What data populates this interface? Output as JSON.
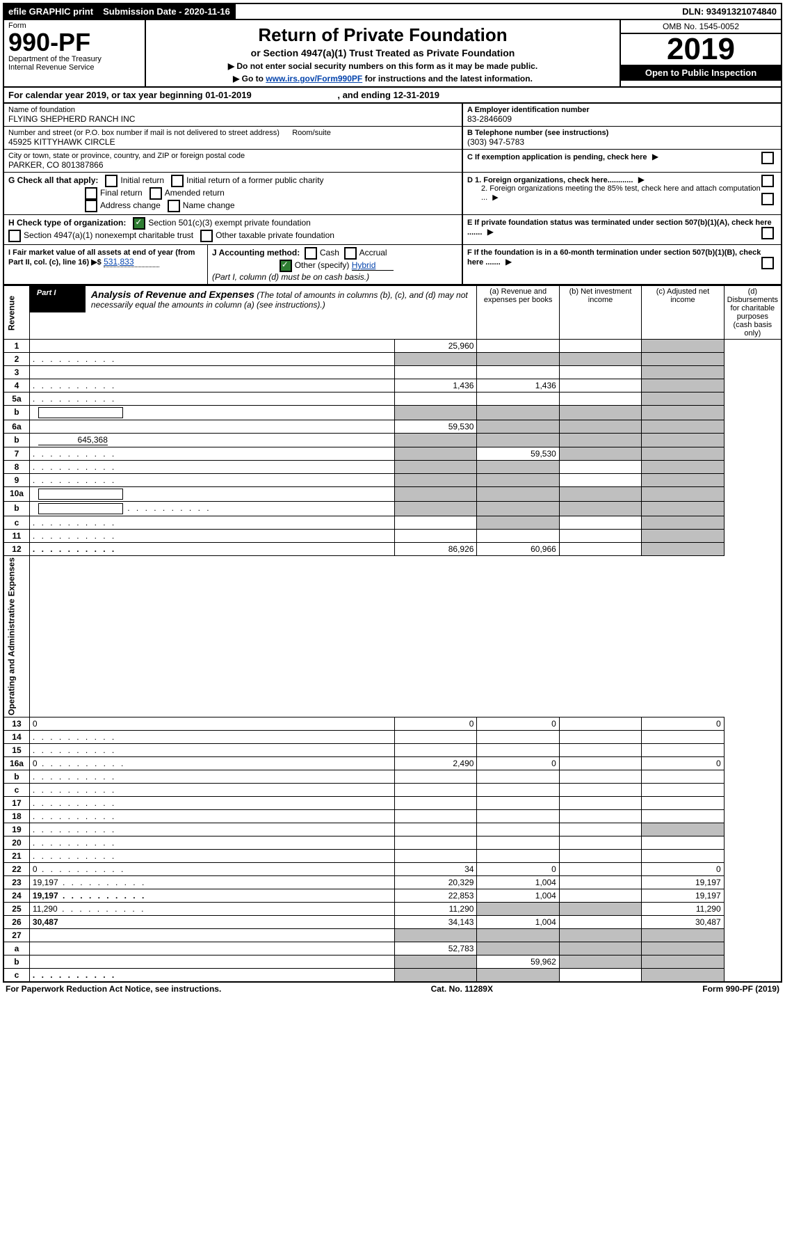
{
  "topbar": {
    "efile": "efile GRAPHIC print",
    "submission": "Submission Date - 2020-11-16",
    "dln": "DLN: 93491321074840"
  },
  "header": {
    "form_word": "Form",
    "form_no": "990-PF",
    "dept": "Department of the Treasury",
    "irs": "Internal Revenue Service",
    "title": "Return of Private Foundation",
    "sub": "or Section 4947(a)(1) Trust Treated as Private Foundation",
    "instr1": "▶ Do not enter social security numbers on this form as it may be made public.",
    "instr2_pre": "▶ Go to ",
    "instr2_link": "www.irs.gov/Form990PF",
    "instr2_post": " for instructions and the latest information.",
    "omb": "OMB No. 1545-0052",
    "year": "2019",
    "open": "Open to Public Inspection"
  },
  "cal": {
    "text_pre": "For calendar year 2019, or tax year beginning ",
    "begin": "01-01-2019",
    "mid": " , and ending ",
    "end": "12-31-2019"
  },
  "entity": {
    "name_lbl": "Name of foundation",
    "name": "FLYING SHEPHERD RANCH INC",
    "addr_lbl": "Number and street (or P.O. box number if mail is not delivered to street address)",
    "addr": "45925 KITTYHAWK CIRCLE",
    "room_lbl": "Room/suite",
    "city_lbl": "City or town, state or province, country, and ZIP or foreign postal code",
    "city": "PARKER, CO  801387866",
    "ein_lbl": "A Employer identification number",
    "ein": "83-2846609",
    "tel_lbl": "B Telephone number (see instructions)",
    "tel": "(303) 947-5783",
    "c_lbl": "C If exemption application is pending, check here",
    "d1": "D 1. Foreign organizations, check here............",
    "d2": "2. Foreign organizations meeting the 85% test, check here and attach computation ...",
    "e": "E If private foundation status was terminated under section 507(b)(1)(A), check here .......",
    "f": "F If the foundation is in a 60-month termination under section 507(b)(1)(B), check here ......."
  },
  "g": {
    "label": "G Check all that apply:",
    "opts": [
      "Initial return",
      "Initial return of a former public charity",
      "Final return",
      "Amended return",
      "Address change",
      "Name change"
    ]
  },
  "h": {
    "label": "H Check type of organization:",
    "opt1": "Section 501(c)(3) exempt private foundation",
    "opt2": "Section 4947(a)(1) nonexempt charitable trust",
    "opt3": "Other taxable private foundation"
  },
  "i": {
    "label": "I Fair market value of all assets at end of year (from Part II, col. (c), line 16) ▶$",
    "val": "531,833"
  },
  "j": {
    "label": "J Accounting method:",
    "cash": "Cash",
    "accrual": "Accrual",
    "other": "Other (specify)",
    "other_val": "Hybrid",
    "note": "(Part I, column (d) must be on cash basis.)"
  },
  "part1": {
    "label": "Part I",
    "title": "Analysis of Revenue and Expenses",
    "note": "(The total of amounts in columns (b), (c), and (d) may not necessarily equal the amounts in column (a) (see instructions).)",
    "cols": {
      "a": "(a) Revenue and expenses per books",
      "b": "(b) Net investment income",
      "c": "(c) Adjusted net income",
      "d": "(d) Disbursements for charitable purposes (cash basis only)"
    }
  },
  "sections": {
    "rev": "Revenue",
    "exp": "Operating and Administrative Expenses"
  },
  "lines": [
    {
      "n": "1",
      "d": "",
      "a": "25,960",
      "b": "",
      "c": "",
      "d_shade": true
    },
    {
      "n": "2",
      "d": "",
      "dots": true,
      "a": "",
      "b": "",
      "c": "",
      "all_shade": true
    },
    {
      "n": "3",
      "d": "",
      "a": "",
      "b": "",
      "c": "",
      "d_shade": true
    },
    {
      "n": "4",
      "d": "",
      "dots": true,
      "a": "1,436",
      "b": "1,436",
      "c": "",
      "d_shade": true
    },
    {
      "n": "5a",
      "d": "",
      "dots": true,
      "a": "",
      "b": "",
      "c": "",
      "d_shade": true
    },
    {
      "n": "b",
      "d": "",
      "box": true,
      "a": "",
      "b": "",
      "c": "",
      "all_shade": true
    },
    {
      "n": "6a",
      "d": "",
      "a": "59,530",
      "b": "",
      "c": "",
      "bcd_shade": true
    },
    {
      "n": "b",
      "d": "",
      "box_val": "645,368",
      "a": "",
      "b": "",
      "c": "",
      "all_shade": true
    },
    {
      "n": "7",
      "d": "",
      "dots": true,
      "a": "",
      "b": "59,530",
      "c": "",
      "a_shade": true,
      "cd_shade": true
    },
    {
      "n": "8",
      "d": "",
      "dots": true,
      "a": "",
      "b": "",
      "c": "",
      "ab_shade": true,
      "d_shade": true
    },
    {
      "n": "9",
      "d": "",
      "dots": true,
      "a": "",
      "b": "",
      "c": "",
      "ab_shade": true,
      "d_shade": true
    },
    {
      "n": "10a",
      "d": "",
      "box": true,
      "a": "",
      "b": "",
      "c": "",
      "all_shade": true
    },
    {
      "n": "b",
      "d": "",
      "dots": true,
      "box": true,
      "a": "",
      "b": "",
      "c": "",
      "all_shade": true
    },
    {
      "n": "c",
      "d": "",
      "dots": true,
      "a": "",
      "b": "",
      "c": "",
      "b_shade": true,
      "d_shade": true
    },
    {
      "n": "11",
      "d": "",
      "dots": true,
      "a": "",
      "b": "",
      "c": "",
      "d_shade": true
    },
    {
      "n": "12",
      "d": "",
      "dots": true,
      "bold": true,
      "a": "86,926",
      "b": "60,966",
      "c": "",
      "d_shade": true
    },
    {
      "n": "13",
      "d": "0",
      "a": "0",
      "b": "0",
      "c": ""
    },
    {
      "n": "14",
      "d": "",
      "dots": true,
      "a": "",
      "b": "",
      "c": ""
    },
    {
      "n": "15",
      "d": "",
      "dots": true,
      "a": "",
      "b": "",
      "c": ""
    },
    {
      "n": "16a",
      "d": "0",
      "dots": true,
      "a": "2,490",
      "b": "0",
      "c": ""
    },
    {
      "n": "b",
      "d": "",
      "dots": true,
      "a": "",
      "b": "",
      "c": ""
    },
    {
      "n": "c",
      "d": "",
      "dots": true,
      "a": "",
      "b": "",
      "c": ""
    },
    {
      "n": "17",
      "d": "",
      "dots": true,
      "a": "",
      "b": "",
      "c": ""
    },
    {
      "n": "18",
      "d": "",
      "dots": true,
      "a": "",
      "b": "",
      "c": ""
    },
    {
      "n": "19",
      "d": "",
      "dots": true,
      "a": "",
      "b": "",
      "c": "",
      "d_shade": true
    },
    {
      "n": "20",
      "d": "",
      "dots": true,
      "a": "",
      "b": "",
      "c": ""
    },
    {
      "n": "21",
      "d": "",
      "dots": true,
      "a": "",
      "b": "",
      "c": ""
    },
    {
      "n": "22",
      "d": "0",
      "dots": true,
      "a": "34",
      "b": "0",
      "c": ""
    },
    {
      "n": "23",
      "d": "19,197",
      "dots": true,
      "a": "20,329",
      "b": "1,004",
      "c": ""
    },
    {
      "n": "24",
      "d": "19,197",
      "dots": true,
      "bold": true,
      "a": "22,853",
      "b": "1,004",
      "c": ""
    },
    {
      "n": "25",
      "d": "11,290",
      "dots": true,
      "a": "11,290",
      "b": "",
      "c": "",
      "bc_shade": true
    },
    {
      "n": "26",
      "d": "30,487",
      "bold": true,
      "a": "34,143",
      "b": "1,004",
      "c": ""
    },
    {
      "n": "27",
      "d": "",
      "a": "",
      "b": "",
      "c": "",
      "all_shade": true
    },
    {
      "n": "a",
      "d": "",
      "bold": true,
      "a": "52,783",
      "b": "",
      "c": "",
      "bcd_shade": true
    },
    {
      "n": "b",
      "d": "",
      "bold": true,
      "a": "",
      "b": "59,962",
      "c": "",
      "a_shade": true,
      "cd_shade": true
    },
    {
      "n": "c",
      "d": "",
      "dots": true,
      "bold": true,
      "a": "",
      "b": "",
      "c": "",
      "ab_shade": true,
      "d_shade": true
    }
  ],
  "footer": {
    "left": "For Paperwork Reduction Act Notice, see instructions.",
    "mid": "Cat. No. 11289X",
    "right": "Form 990-PF (2019)"
  }
}
